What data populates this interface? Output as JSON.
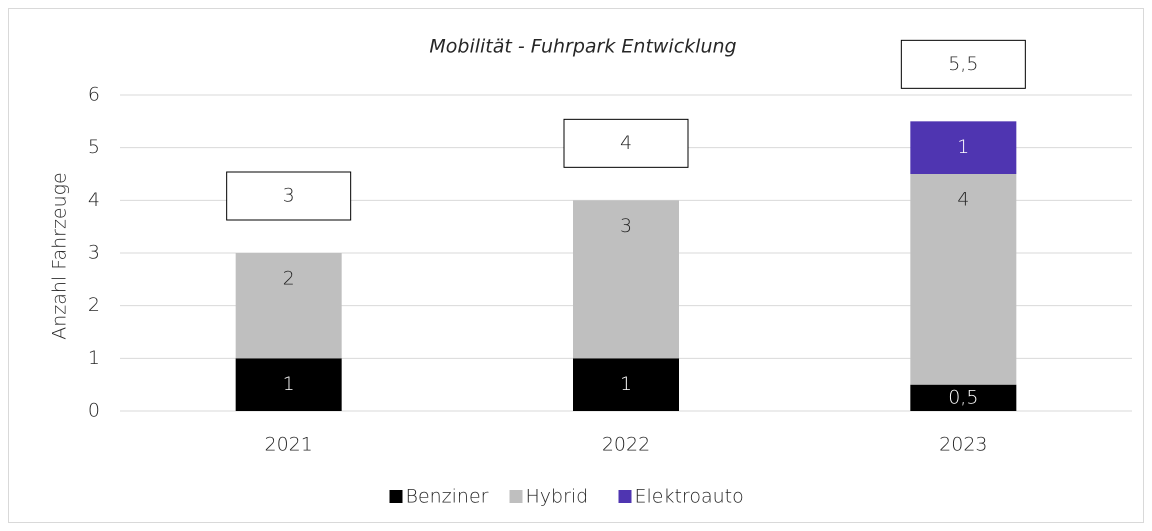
{
  "chart_data": {
    "type": "stacked_bar",
    "title": "Mobilität - Fuhrpark Entwicklung",
    "y_label": "Anzahl Fahrzeuge",
    "categories": [
      "2021",
      "2022",
      "2023"
    ],
    "series": [
      {
        "name": "Benziner",
        "color": "#000000",
        "values": [
          1,
          1,
          0.5
        ],
        "value_labels": [
          "1",
          "1",
          "0,5"
        ]
      },
      {
        "name": "Hybrid",
        "color": "#bfbfbf",
        "values": [
          2,
          3,
          4
        ]
      },
      {
        "name": "Elektroauto",
        "color": "#4f35b1",
        "values": [
          null,
          null,
          1
        ]
      }
    ],
    "totals": [
      3,
      4,
      5.5
    ],
    "total_labels": [
      "3",
      "4",
      "5,5"
    ],
    "ylim": [
      0,
      6
    ],
    "yticks": [
      0,
      1,
      2,
      3,
      4,
      5,
      6
    ],
    "grid": true,
    "legend": "bottom"
  }
}
